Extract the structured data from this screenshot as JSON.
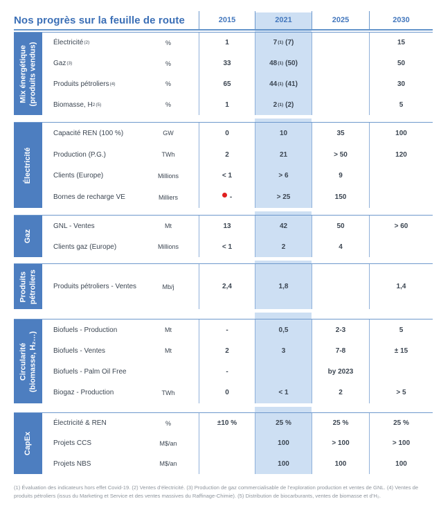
{
  "header": {
    "title": "Nos progrès sur la feuille de route",
    "years": [
      "2015",
      "2021",
      "2025",
      "2030"
    ],
    "highlighted_year": "2021"
  },
  "colors": {
    "accent_blue": "#3b6fb6",
    "sidebar_blue": "#4d7ec0",
    "highlight_band": "#cddff3",
    "border_blue": "#7fa3d0",
    "red_dot": "#e01f1f",
    "text_dark": "#3b4551",
    "footnote_gray": "#8e959d"
  },
  "sections": [
    {
      "sidebar": "Mix énergétique\n(produits vendus)",
      "rows": [
        {
          "label": "Électricité",
          "label_sup": "(2)",
          "unit": "%",
          "v2015": "1",
          "v2021_pre": "7",
          "v2021_sup": "(1)",
          "v2021_post": "(7)",
          "v2025": "",
          "v2030": "15"
        },
        {
          "label": "Gaz",
          "label_sup": "(3)",
          "unit": "%",
          "v2015": "33",
          "v2021_pre": "48",
          "v2021_sup": "(1)",
          "v2021_post": "(50)",
          "v2025": "",
          "v2030": "50"
        },
        {
          "label": "Produits pétroliers",
          "label_sup": "(4)",
          "unit": "%",
          "v2015": "65",
          "v2021_pre": "44",
          "v2021_sup": "(1)",
          "v2021_post": "(41)",
          "v2025": "",
          "v2030": "30"
        },
        {
          "label": "Biomasse, H",
          "label_sub": "2",
          "label_sup": "(5)",
          "unit": "%",
          "v2015": "1",
          "v2021_pre": "2",
          "v2021_sup": "(1)",
          "v2021_post": "(2)",
          "v2025": "",
          "v2030": "5"
        }
      ]
    },
    {
      "sidebar": "Électricité",
      "rows": [
        {
          "label": "Capacité REN (100 %)",
          "unit": "GW",
          "v2015": "0",
          "v2021": "10",
          "v2025": "35",
          "v2030": "100"
        },
        {
          "label": "Production (P.G.)",
          "unit": "TWh",
          "v2015": "2",
          "v2021": "21",
          "v2025": "> 50",
          "v2030": "120"
        },
        {
          "label": "Clients (Europe)",
          "unit": "Millions",
          "v2015": "< 1",
          "v2021": "> 6",
          "v2025": "9",
          "v2030": ""
        },
        {
          "label": "Bornes de recharge VE",
          "unit": "Milliers",
          "v2015": "-",
          "v2015_marker": "red-dot",
          "v2021": "> 25",
          "v2025": "150",
          "v2030": ""
        }
      ]
    },
    {
      "sidebar": "Gaz",
      "rows": [
        {
          "label": "GNL - Ventes",
          "unit": "Mt",
          "v2015": "13",
          "v2021": "42",
          "v2025": "50",
          "v2030": "> 60"
        },
        {
          "label": "Clients gaz (Europe)",
          "unit": "Millions",
          "v2015": "< 1",
          "v2021": "2",
          "v2025": "4",
          "v2030": ""
        }
      ]
    },
    {
      "sidebar": "Produits\npétroliers",
      "rows": [
        {
          "label": "Produits pétroliers - Ventes",
          "unit": "Mb/j",
          "v2015": "2,4",
          "v2021": "1,8",
          "v2025": "",
          "v2030": "1,4"
        }
      ]
    },
    {
      "sidebar": "Circularité\n(biomasse, H₂…)",
      "rows": [
        {
          "label": "Biofuels - Production",
          "unit": "Mt",
          "v2015": "-",
          "v2021": "0,5",
          "v2025": "2-3",
          "v2030": "5"
        },
        {
          "label": "Biofuels - Ventes",
          "unit": "Mt",
          "v2015": "2",
          "v2021": "3",
          "v2025": "7-8",
          "v2030": "± 15"
        },
        {
          "label": "Biofuels - Palm Oil Free",
          "unit": "",
          "v2015": "-",
          "v2021": "",
          "v2025": "by 2023",
          "v2030": ""
        },
        {
          "label": "Biogaz - Production",
          "unit": "TWh",
          "v2015": "0",
          "v2021": "< 1",
          "v2025": "2",
          "v2030": "> 5"
        }
      ]
    },
    {
      "sidebar": "CapEx",
      "rows": [
        {
          "label": "Électricité & REN",
          "unit": "%",
          "v2015": "±10 %",
          "v2021": "25 %",
          "v2025": "25 %",
          "v2030": "25 %"
        },
        {
          "label": "Projets CCS",
          "unit": "M$/an",
          "v2015": "",
          "v2021": "100",
          "v2025": "> 100",
          "v2030": "> 100"
        },
        {
          "label": "Projets NBS",
          "unit": "M$/an",
          "v2015": "",
          "v2021": "100",
          "v2025": "100",
          "v2030": "100"
        }
      ]
    }
  ],
  "footnote": "(1) Évaluation des indicateurs hors effet Covid-19. (2) Ventes d’électricité. (3) Production de gaz commercialisable de l’exploration production et ventes de GNL. (4) Ventes de produits pétroliers (issus du Marketing et Service et des ventes massives du Raffinage-Chimie). (5) Distribution de biocarburants, ventes de biomasse et d’H₂."
}
